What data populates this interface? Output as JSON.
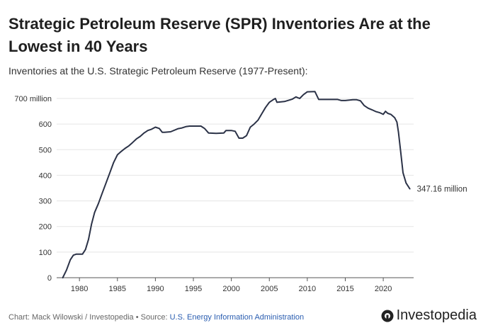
{
  "header": {
    "title": "Strategic Petroleum Reserve (SPR) Inventories Are at the Lowest in 40 Years",
    "subtitle": "Inventories at the U.S. Strategic Petroleum Reserve (1977-Present):"
  },
  "footer": {
    "credit": "Chart: Mack Wilowski / Investopedia • Source: ",
    "source_link": "U.S. Energy Information Administration",
    "brand": "Investopedia"
  },
  "colors": {
    "line": "#2b3247",
    "grid": "#e5e5e5",
    "axis": "#555555",
    "link": "#2a5db0"
  },
  "chart_data": {
    "type": "line",
    "title": "Strategic Petroleum Reserve (SPR) Inventories Are at the Lowest in 40 Years",
    "subtitle": "Inventories at the U.S. Strategic Petroleum Reserve (1977-Present):",
    "xlabel": "",
    "ylabel": "",
    "xlim": [
      1977,
      2024
    ],
    "ylim": [
      0,
      700
    ],
    "x_ticks": [
      1980,
      1985,
      1990,
      1995,
      2000,
      2005,
      2010,
      2015,
      2020
    ],
    "y_ticks": [
      {
        "value": 0,
        "label": "0"
      },
      {
        "value": 100,
        "label": "100"
      },
      {
        "value": 200,
        "label": "200"
      },
      {
        "value": 300,
        "label": "300"
      },
      {
        "value": 400,
        "label": "400"
      },
      {
        "value": 500,
        "label": "500"
      },
      {
        "value": 600,
        "label": "600"
      },
      {
        "value": 700,
        "label": "700 million"
      }
    ],
    "grid": "horizontal",
    "annotation": {
      "x": 2023.5,
      "y": 347.16,
      "label": "347.16 million"
    },
    "series": [
      {
        "x": [
          1977.8,
          1978.3,
          1978.8,
          1979.2,
          1979.6,
          1980.0,
          1980.4,
          1980.8,
          1981.2,
          1981.6,
          1982.0,
          1982.5,
          1983.0,
          1983.5,
          1984.0,
          1984.5,
          1985.0,
          1985.5,
          1986.0,
          1986.5,
          1987.0,
          1987.5,
          1988.0,
          1988.5,
          1989.0,
          1989.5,
          1990.0,
          1990.5,
          1990.9,
          1991.2,
          1992.0,
          1993.0,
          1993.5,
          1994.0,
          1994.5,
          1995.0,
          1996.0,
          1996.5,
          1997.0,
          1998.0,
          1999.0,
          1999.3,
          2000.0,
          2000.5,
          2001.0,
          2001.5,
          2002.0,
          2002.5,
          2003.0,
          2003.5,
          2004.0,
          2004.5,
          2005.0,
          2005.5,
          2005.8,
          2006.0,
          2007.0,
          2008.0,
          2008.5,
          2009.0,
          2009.5,
          2010.0,
          2011.0,
          2011.5,
          2012.0,
          2013.0,
          2014.0,
          2014.5,
          2015.0,
          2016.0,
          2016.5,
          2017.0,
          2017.5,
          2018.0,
          2018.5,
          2019.0,
          2019.5,
          2020.0,
          2020.3,
          2020.6,
          2021.0,
          2021.5,
          2021.8,
          2022.0,
          2022.3,
          2022.6,
          2023.0,
          2023.5
        ],
        "values": [
          0,
          30,
          70,
          88,
          92,
          92,
          92,
          110,
          150,
          210,
          255,
          290,
          330,
          370,
          410,
          450,
          480,
          493,
          505,
          515,
          528,
          542,
          552,
          565,
          575,
          580,
          588,
          583,
          568,
          568,
          570,
          582,
          585,
          590,
          592,
          592,
          592,
          582,
          565,
          564,
          565,
          575,
          575,
          572,
          545,
          545,
          555,
          588,
          600,
          615,
          640,
          665,
          685,
          695,
          700,
          685,
          688,
          697,
          706,
          700,
          715,
          726,
          727,
          696,
          696,
          696,
          696,
          692,
          692,
          695,
          695,
          691,
          672,
          662,
          656,
          649,
          645,
          638,
          650,
          642,
          638,
          625,
          608,
          568,
          490,
          410,
          370,
          347.16
        ]
      }
    ]
  }
}
